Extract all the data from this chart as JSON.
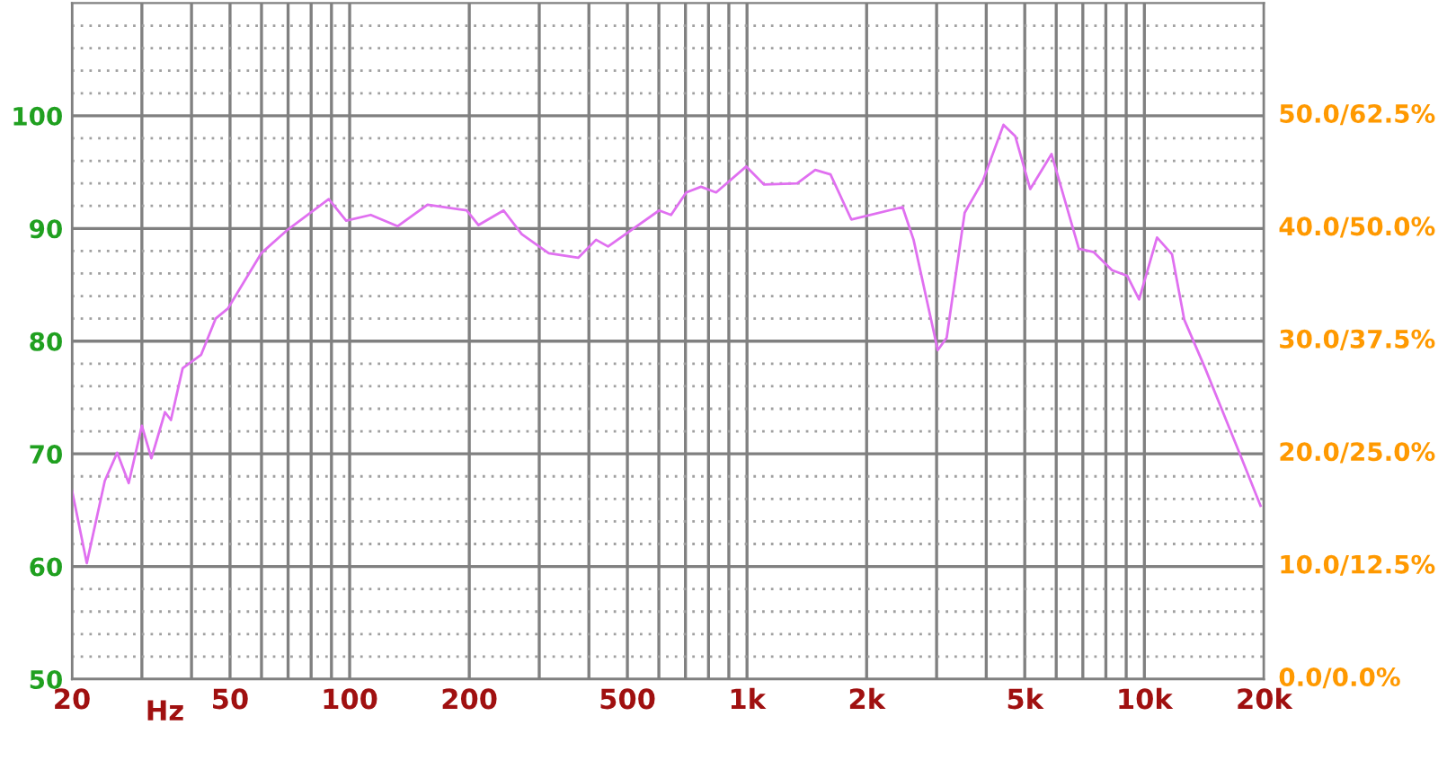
{
  "chart_data": {
    "type": "line",
    "xlabel": "Hz",
    "log": "x",
    "grid": true,
    "x": [
      20,
      21.8,
      24.2,
      26.0,
      27.8,
      30,
      31.7,
      34.3,
      35.5,
      38.0,
      42.3,
      46.0,
      49.4,
      59.9,
      69.9,
      88.6,
      98.0,
      113,
      132,
      157,
      197,
      211,
      244,
      271,
      317,
      376,
      417,
      447,
      601,
      644,
      703,
      766,
      836,
      995,
      1104,
      1337,
      1485,
      1622,
      1830,
      2463,
      2625,
      3020,
      3180,
      3530,
      3920,
      4420,
      4730,
      5160,
      5840,
      6840,
      7460,
      8290,
      9050,
      9700,
      10760,
      11740,
      12600,
      14220,
      17250,
      19600
    ],
    "series": [
      {
        "color": "#e070f0",
        "values": [
          66.8,
          60.3,
          67.6,
          70.1,
          67.4,
          72.5,
          69.6,
          73.7,
          73.0,
          77.6,
          78.8,
          82.0,
          82.9,
          87.8,
          89.9,
          92.6,
          90.7,
          91.2,
          90.2,
          92.1,
          91.6,
          90.3,
          91.6,
          89.5,
          87.8,
          87.4,
          89.0,
          88.4,
          91.6,
          91.2,
          93.2,
          93.7,
          93.2,
          95.5,
          93.9,
          94.0,
          95.2,
          94.8,
          90.8,
          91.9,
          89.0,
          79.2,
          80.3,
          91.4,
          94.2,
          99.2,
          98.2,
          93.5,
          96.6,
          88.2,
          87.9,
          86.3,
          85.8,
          83.7,
          89.2,
          87.7,
          81.9,
          77.6,
          70.3,
          65.4
        ]
      }
    ],
    "xlim": [
      20,
      20000
    ],
    "xticks": [
      20,
      {
        "value": 30,
        "label": null
      },
      {
        "value": 40,
        "label": null
      },
      50,
      {
        "value": 60,
        "label": null
      },
      {
        "value": 70,
        "label": null
      },
      {
        "value": 80,
        "label": null
      },
      {
        "value": 90,
        "label": null
      },
      100,
      200,
      {
        "value": 300,
        "label": null
      },
      {
        "value": 400,
        "label": null
      },
      500,
      {
        "value": 600,
        "label": null
      },
      {
        "value": 700,
        "label": null
      },
      {
        "value": 800,
        "label": null
      },
      {
        "value": 900,
        "label": null
      },
      {
        "value": 1000,
        "label": "1k"
      },
      {
        "value": 2000,
        "label": "2k"
      },
      {
        "value": 3000,
        "label": null
      },
      {
        "value": 4000,
        "label": null
      },
      {
        "value": 5000,
        "label": "5k"
      },
      {
        "value": 6000,
        "label": null
      },
      {
        "value": 7000,
        "label": null
      },
      {
        "value": 8000,
        "label": null
      },
      {
        "value": 9000,
        "label": null
      },
      {
        "value": 10000,
        "label": "10k"
      },
      {
        "value": 20000,
        "label": "20k"
      }
    ],
    "ylim": [
      50,
      110
    ],
    "yticks": [
      50,
      {
        "value": 52,
        "label": null
      },
      {
        "value": 54,
        "label": null
      },
      {
        "value": 56,
        "label": null
      },
      {
        "value": 58,
        "label": null
      },
      60,
      {
        "value": 62,
        "label": null
      },
      {
        "value": 64,
        "label": null
      },
      {
        "value": 66,
        "label": null
      },
      {
        "value": 68,
        "label": null
      },
      70,
      {
        "value": 72,
        "label": null
      },
      {
        "value": 74,
        "label": null
      },
      {
        "value": 76,
        "label": null
      },
      {
        "value": 78,
        "label": null
      },
      80,
      {
        "value": 82,
        "label": null
      },
      {
        "value": 84,
        "label": null
      },
      {
        "value": 86,
        "label": null
      },
      {
        "value": 88,
        "label": null
      },
      90,
      {
        "value": 92,
        "label": null
      },
      {
        "value": 94,
        "label": null
      },
      {
        "value": 96,
        "label": null
      },
      {
        "value": 98,
        "label": null
      },
      100,
      {
        "value": 102,
        "label": null
      },
      {
        "value": 104,
        "label": null
      },
      {
        "value": 106,
        "label": null
      },
      {
        "value": 108,
        "label": null
      }
    ],
    "annotations": [
      "0.0/0.0%",
      "10.0/12.5%",
      "20.0/25.0%",
      "30.0/37.5%",
      "40.0/50.0%",
      "50.0/62.5%"
    ]
  }
}
